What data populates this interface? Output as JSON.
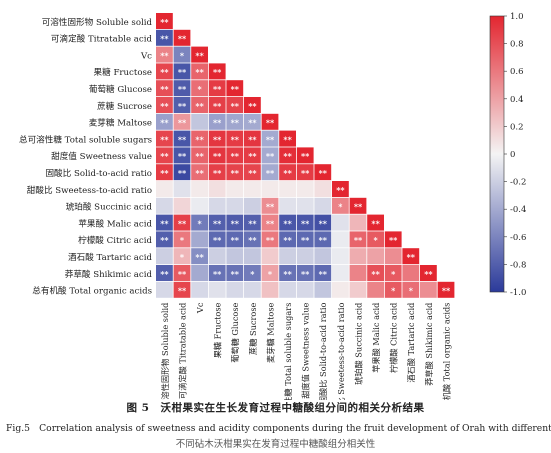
{
  "chart_data": {
    "type": "heatmap",
    "subtype": "lower-triangular correlation matrix",
    "variables": [
      "可溶性固形物 Soluble solid",
      "可滴定酸 Titratable acid",
      "Vc",
      "果糖 Fructose",
      "葡萄糖 Glucose",
      "蔗糖 Sucrose",
      "麦芽糖 Maltose",
      "总可溶性糖 Total soluble sugars",
      "甜度值 Sweetness value",
      "固酸比 Solid-to-acid ratio",
      "甜酸比 Sweetess-to-acid ratio",
      "琥珀酸 Succinic acid",
      "苹果酸 Malic acid",
      "柠檬酸 Citric acid",
      "酒石酸 Tartaric acid",
      "莽草酸 Shikimic acid",
      "总有机酸 Total organic acids"
    ],
    "matrix": [
      [
        1
      ],
      [
        -0.85,
        1
      ],
      [
        0.55,
        -0.6,
        1
      ],
      [
        0.85,
        -0.85,
        0.7,
        1
      ],
      [
        0.8,
        -0.82,
        0.65,
        0.9,
        1
      ],
      [
        0.8,
        -0.8,
        0.7,
        0.88,
        0.86,
        1
      ],
      [
        -0.45,
        0.45,
        -0.25,
        -0.45,
        -0.42,
        -0.4,
        1
      ],
      [
        0.85,
        -0.85,
        0.7,
        0.92,
        0.9,
        0.92,
        -0.4,
        1
      ],
      [
        0.85,
        -0.85,
        0.7,
        0.92,
        0.9,
        0.9,
        -0.4,
        0.96,
        1
      ],
      [
        0.9,
        -0.92,
        0.65,
        0.88,
        0.86,
        0.85,
        -0.4,
        0.9,
        0.9,
        1
      ],
      [
        0.05,
        -0.1,
        0.05,
        0.1,
        0.05,
        0.05,
        0.05,
        0.05,
        0.05,
        0.1,
        1
      ],
      [
        -0.15,
        0.15,
        -0.05,
        -0.15,
        -0.15,
        -0.2,
        0.5,
        -0.1,
        -0.1,
        -0.15,
        0.55,
        1
      ],
      [
        -0.85,
        0.88,
        -0.65,
        -0.8,
        -0.82,
        -0.8,
        0.55,
        -0.85,
        -0.85,
        -0.88,
        -0.1,
        0.3,
        1
      ],
      [
        -0.8,
        0.6,
        -0.4,
        -0.75,
        -0.75,
        -0.7,
        0.6,
        -0.75,
        -0.75,
        -0.75,
        -0.05,
        0.7,
        0.75,
        1
      ],
      [
        -0.2,
        0.3,
        -0.55,
        -0.2,
        -0.25,
        -0.25,
        0.2,
        -0.2,
        -0.2,
        -0.25,
        -0.05,
        0.35,
        0.4,
        0.5,
        1
      ],
      [
        -0.8,
        0.75,
        -0.4,
        -0.7,
        -0.7,
        -0.65,
        0.4,
        -0.7,
        -0.7,
        -0.75,
        -0.05,
        0.55,
        0.8,
        0.75,
        0.6,
        1
      ],
      [
        -0.15,
        0.85,
        -0.15,
        -0.1,
        -0.15,
        -0.15,
        0.25,
        -0.15,
        -0.15,
        -0.25,
        0.05,
        0.2,
        0.55,
        0.75,
        0.65,
        0.5,
        1
      ]
    ],
    "significance": [
      [
        "**"
      ],
      [
        "**",
        "**"
      ],
      [
        "**",
        "*",
        "**"
      ],
      [
        "**",
        "**",
        "**",
        "**"
      ],
      [
        "**",
        "**",
        "*",
        "**",
        "**"
      ],
      [
        "**",
        "**",
        "**",
        "**",
        "**",
        "**"
      ],
      [
        "**",
        "**",
        "",
        "**",
        "**",
        "**",
        "**"
      ],
      [
        "**",
        "**",
        "**",
        "**",
        "**",
        "**",
        "**",
        "**"
      ],
      [
        "**",
        "**",
        "**",
        "**",
        "**",
        "**",
        "**",
        "**",
        "**"
      ],
      [
        "**",
        "**",
        "**",
        "**",
        "**",
        "**",
        "**",
        "**",
        "**",
        "**"
      ],
      [
        "",
        "",
        "",
        "",
        "",
        "",
        "",
        "",
        "",
        "",
        "**"
      ],
      [
        "",
        "",
        "",
        "",
        "",
        "",
        "**",
        "",
        "",
        "",
        "*",
        "**"
      ],
      [
        "**",
        "**",
        "*",
        "**",
        "**",
        "**",
        "**",
        "**",
        "**",
        "**",
        "",
        "",
        "**"
      ],
      [
        "**",
        "*",
        "",
        "**",
        "**",
        "**",
        "**",
        "**",
        "**",
        "**",
        "",
        "**",
        "*",
        "**"
      ],
      [
        "",
        "*",
        "**",
        "",
        "",
        "",
        "",
        "",
        "",
        "",
        "",
        "",
        "",
        "",
        "**"
      ],
      [
        "**",
        "**",
        "",
        "**",
        "**",
        "*",
        "*",
        "**",
        "**",
        "**",
        "",
        "",
        "**",
        "*",
        "",
        "**"
      ],
      [
        "",
        "**",
        "",
        "",
        "",
        "",
        "",
        "",
        "",
        "",
        "",
        "",
        "",
        "*",
        "*",
        "",
        "**"
      ]
    ],
    "colorbar": {
      "min": -1.0,
      "max": 1.0,
      "ticks": [
        "1.0",
        "0.8",
        "0.6",
        "0.4",
        "0.2",
        "0",
        "-0.2",
        "-0.4",
        "-0.6",
        "-0.8",
        "-1.0"
      ]
    },
    "colors": {
      "positive": "#e32630",
      "neutral": "#f4f4f4",
      "negative": "#2b3a9a",
      "star": "#ffffff"
    }
  },
  "caption": {
    "zh": "图 5　沃柑果实在生长发育过程中糖酸组分间的相关分析结果",
    "en": "Fig.5　Correlation analysis of sweetness and acidity components during the fruit development of Orah with different rootstocks",
    "zh2": "不同砧木沃柑果实在发育过程中糖酸组分相关性"
  }
}
